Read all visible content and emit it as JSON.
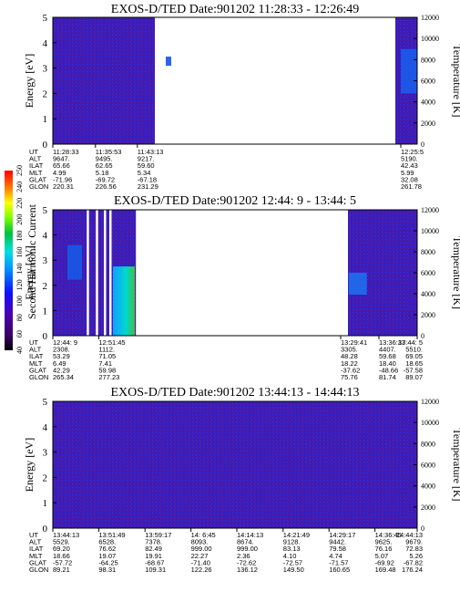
{
  "colorbar": {
    "label": "Second Harmonic Current",
    "ticks": [
      "40",
      "60",
      "80",
      "100",
      "120",
      "140",
      "160",
      "180",
      "200",
      "220",
      "240",
      "250"
    ]
  },
  "chart_data": [
    {
      "type": "heatmap",
      "title": "EXOS-D/TED   Date:901202   11:28:33 - 12:26:49",
      "ylabel": "Energy [eV]",
      "y2label": "Temperature [K]",
      "ylim": [
        0,
        5
      ],
      "y_ticks": [
        "0",
        "1",
        "2",
        "3",
        "4",
        "5"
      ],
      "y2lim": [
        0,
        12000
      ],
      "y2_ticks": [
        "0",
        "2000",
        "4000",
        "6000",
        "8000",
        "10000",
        "12000"
      ],
      "data_gaps": [
        [
          0.28,
          0.94
        ]
      ],
      "orbit": {
        "labels": [
          "UT",
          "ALT",
          "ILAT",
          "MLT",
          "GLAT",
          "GLON"
        ],
        "columns": [
          {
            "pos": 0.0,
            "values": [
              "11:28:33",
              "9647.",
              "65.66",
              "4.99",
              "-71.96",
              "220.31"
            ]
          },
          {
            "pos": 0.117,
            "values": [
              "11:35:53",
              "9495.",
              "62.65",
              "5.18",
              "-69.72",
              "226.56"
            ]
          },
          {
            "pos": 0.232,
            "values": [
              "11:43:13",
              "9217.",
              "59.60",
              "5.34",
              "-67.18",
              "231.29"
            ]
          },
          {
            "pos": 0.955,
            "values": [
              "12:25:5",
              "5190.",
              "42.43",
              "5.99",
              "32.08",
              "261.78"
            ]
          }
        ]
      }
    },
    {
      "type": "heatmap",
      "title": "EXOS-D/TED   Date:901202   12:44: 9 - 13:44: 5",
      "ylabel": "Energy [eV]",
      "y2label": "Temperature [K]",
      "ylim": [
        0,
        5
      ],
      "y_ticks": [
        "0",
        "1",
        "2",
        "3",
        "4",
        "5"
      ],
      "y2lim": [
        0,
        12000
      ],
      "y2_ticks": [
        "0",
        "2000",
        "4000",
        "6000",
        "8000",
        "10000",
        "12000"
      ],
      "data_gaps": [
        [
          0.228,
          0.81
        ]
      ],
      "orbit": {
        "labels": [
          "UT",
          "ALT",
          "ILAT",
          "MLT",
          "GLAT",
          "GLON"
        ],
        "columns": [
          {
            "pos": 0.0,
            "values": [
              "12:44: 9",
              "2308.",
              "53.29",
              "6.49",
              "42.29",
              "265.34"
            ]
          },
          {
            "pos": 0.126,
            "values": [
              "12:51:45",
              "1112.",
              "71.05",
              "7.41",
              "59.98",
              "277.23"
            ]
          },
          {
            "pos": 0.79,
            "values": [
              "13:29:41",
              "3305.",
              "48.28",
              "18.22",
              "-37.62",
              "75.76"
            ]
          },
          {
            "pos": 0.895,
            "values": [
              "13:36:37",
              "4407.",
              "59.68",
              "18.40",
              "-48.66",
              "81.74"
            ]
          },
          {
            "pos": 1.0,
            "values": [
              "13:44: 5",
              "5510.",
              "69.05",
              "18.65",
              "-57.58",
              "89.07"
            ]
          }
        ]
      }
    },
    {
      "type": "heatmap",
      "title": "EXOS-D/TED   Date:901202   13:44:13 - 14:44:13",
      "ylabel": "Energy [eV]",
      "y2label": "Temperature [K]",
      "ylim": [
        0,
        5
      ],
      "y_ticks": [
        "0",
        "1",
        "2",
        "3",
        "4",
        "5"
      ],
      "y2lim": [
        0,
        12000
      ],
      "y2_ticks": [
        "0",
        "2000",
        "4000",
        "6000",
        "8000",
        "10000",
        "12000"
      ],
      "data_gaps": [],
      "orbit": {
        "labels": [
          "UT",
          "ALT",
          "ILAT",
          "MLT",
          "GLAT",
          "GLON"
        ],
        "columns": [
          {
            "pos": 0.0,
            "values": [
              "13:44:13",
              "5529.",
              "69.20",
              "18.66",
              "-57.72",
              "89.21"
            ]
          },
          {
            "pos": 0.126,
            "values": [
              "13:51:49",
              "6528.",
              "76.62",
              "19.07",
              "-64.25",
              "98.31"
            ]
          },
          {
            "pos": 0.253,
            "values": [
              "13:59:17",
              "7378.",
              "82.49",
              "19.91",
              "-68.67",
              "109.31"
            ]
          },
          {
            "pos": 0.379,
            "values": [
              "14: 6:45",
              "8093.",
              "999.00",
              "22.27",
              "-71.40",
              "122.26"
            ]
          },
          {
            "pos": 0.505,
            "values": [
              "14:14:13",
              "8674.",
              "999.00",
              "2.36",
              "-72.62",
              "136.12"
            ]
          },
          {
            "pos": 0.632,
            "values": [
              "14:21:49",
              "9128.",
              "83.13",
              "4.10",
              "-72.57",
              "149.50"
            ]
          },
          {
            "pos": 0.758,
            "values": [
              "14:29:17",
              "9442.",
              "79.58",
              "4.74",
              "-71.57",
              "160.65"
            ]
          },
          {
            "pos": 0.884,
            "values": [
              "14:36:45",
              "9625.",
              "76.16",
              "5.07",
              "-69.92",
              "169.48"
            ]
          },
          {
            "pos": 1.0,
            "values": [
              "14:44:13",
              "9679.",
              "72.83",
              "5.26",
              "-67.82",
              "176.24"
            ]
          }
        ]
      }
    }
  ]
}
